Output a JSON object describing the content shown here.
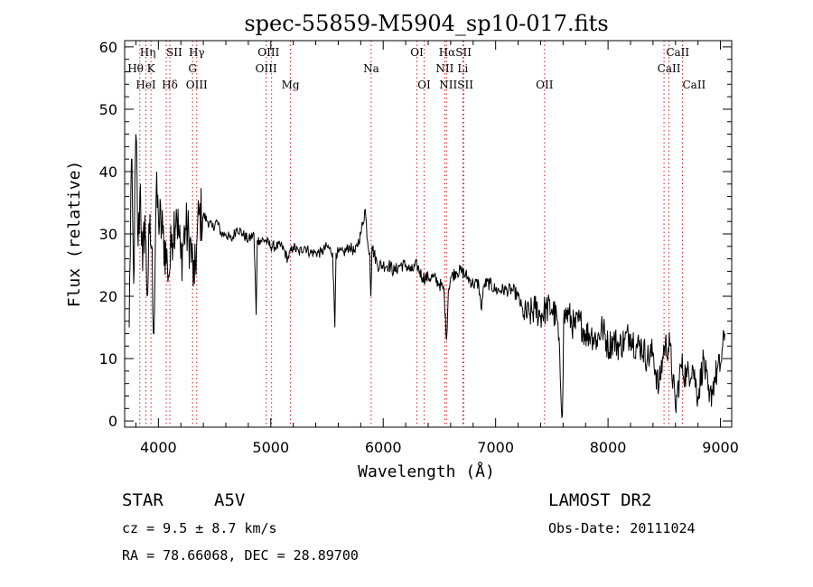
{
  "chart_data": {
    "type": "line",
    "title": "spec-55859-M5904_sp10-017.fits",
    "xlabel": "Wavelength (Å)",
    "ylabel": "Flux (relative)",
    "xlim": [
      3700,
      9100
    ],
    "ylim": [
      -1,
      61
    ],
    "xticks": [
      4000,
      5000,
      6000,
      7000,
      8000,
      9000
    ],
    "yticks": [
      0,
      10,
      20,
      30,
      40,
      50,
      60
    ],
    "grid": false,
    "line_color": "#000000",
    "marker_color": "#cc2222",
    "series": [
      {
        "x": [
          3740,
          3760,
          3780,
          3800,
          3820,
          3840,
          3860,
          3880,
          3900,
          3920,
          3940,
          3960,
          3980,
          4000,
          4040,
          4080,
          4100,
          4120,
          4160,
          4200,
          4240,
          4280,
          4320,
          4340,
          4360,
          4400,
          4440,
          4480,
          4520,
          4560,
          4600,
          4650,
          4700,
          4750,
          4800,
          4850,
          4870,
          4880,
          4900,
          4950,
          5000,
          5050,
          5100,
          5150,
          5200,
          5250,
          5300,
          5350,
          5400,
          5450,
          5500,
          5550,
          5570,
          5580,
          5600,
          5650,
          5700,
          5750,
          5800,
          5840,
          5860,
          5880,
          5890,
          5900,
          5950,
          6000,
          6050,
          6100,
          6150,
          6200,
          6250,
          6300,
          6350,
          6400,
          6450,
          6500,
          6540,
          6563,
          6580,
          6600,
          6650,
          6700,
          6750,
          6800,
          6850,
          6870,
          6900,
          6950,
          7000,
          7050,
          7100,
          7150,
          7200,
          7250,
          7300,
          7350,
          7400,
          7450,
          7500,
          7550,
          7594,
          7605,
          7620,
          7650,
          7700,
          7750,
          7800,
          7850,
          7900,
          7950,
          8000,
          8050,
          8100,
          8150,
          8200,
          8250,
          8300,
          8350,
          8400,
          8450,
          8500,
          8550,
          8600,
          8650,
          8700,
          8750,
          8800,
          8850,
          8900,
          8950,
          9000,
          9040
        ],
        "y": [
          15,
          42,
          22,
          46,
          28,
          38,
          24,
          33,
          20,
          30,
          28,
          14,
          36,
          33,
          30,
          25,
          24,
          30,
          34,
          26,
          31,
          29,
          22,
          28,
          33,
          33,
          32,
          31,
          32,
          30,
          30,
          29,
          31,
          30,
          29,
          30,
          17,
          29,
          29,
          29,
          28,
          28,
          28,
          26,
          28,
          27,
          28,
          27,
          27,
          27,
          28,
          27,
          15,
          27,
          27,
          27,
          28,
          27,
          30,
          34,
          29,
          27,
          20,
          28,
          25,
          25,
          25,
          24,
          25,
          25,
          24,
          25,
          23,
          23,
          23,
          22,
          21,
          13,
          21,
          23,
          24,
          24,
          23,
          22,
          22,
          18,
          22,
          22,
          21,
          21,
          21,
          21,
          20,
          17,
          17,
          18,
          17,
          18,
          18,
          16,
          1,
          16,
          17,
          17,
          15,
          16,
          14,
          14,
          13,
          15,
          12,
          13,
          12,
          13,
          14,
          12,
          12,
          10,
          11,
          5,
          12,
          12,
          2,
          9,
          7,
          9,
          4,
          10,
          3,
          7,
          9,
          14
        ]
      }
    ],
    "lines": [
      {
        "x": 3835,
        "labels": [
          "Hη",
          "Hθ"
        ]
      },
      {
        "x": 3889,
        "labels": [
          "HeI"
        ]
      },
      {
        "x": 3934,
        "labels": [
          "K"
        ]
      },
      {
        "x": 4070,
        "labels": [
          "SII"
        ]
      },
      {
        "x": 4102,
        "labels": [
          "Hδ"
        ]
      },
      {
        "x": 4304,
        "labels": [
          "G"
        ]
      },
      {
        "x": 4341,
        "labels": [
          "Hγ",
          "OIII"
        ]
      },
      {
        "x": 4959,
        "labels": [
          "OIII"
        ]
      },
      {
        "x": 5007,
        "labels": [
          "OIII"
        ]
      },
      {
        "x": 5175,
        "labels": [
          "Mg"
        ]
      },
      {
        "x": 5893,
        "labels": [
          "Na"
        ]
      },
      {
        "x": 6300,
        "labels": [
          "OI"
        ]
      },
      {
        "x": 6364,
        "labels": [
          "OI"
        ]
      },
      {
        "x": 6548,
        "labels": [
          "NII"
        ]
      },
      {
        "x": 6563,
        "labels": [
          "Hα",
          "NII"
        ]
      },
      {
        "x": 6708,
        "labels": [
          "Li"
        ]
      },
      {
        "x": 6717,
        "labels": [
          "SII"
        ]
      },
      {
        "x": 7435,
        "labels": [
          "OII"
        ]
      },
      {
        "x": 8498,
        "labels": [
          "CaII"
        ]
      },
      {
        "x": 8542,
        "labels": [
          "CaII"
        ]
      },
      {
        "x": 8662,
        "labels": [
          "CaII"
        ]
      }
    ],
    "line_labels": [
      {
        "text": "Hη",
        "x": 3835,
        "row": 0,
        "anchor": "start"
      },
      {
        "text": "SII",
        "x": 4070,
        "row": 0,
        "anchor": "start"
      },
      {
        "text": "Hγ",
        "x": 4341,
        "row": 0,
        "anchor": "middle"
      },
      {
        "text": "OIII",
        "x": 4980,
        "row": 0,
        "anchor": "middle"
      },
      {
        "text": "OI",
        "x": 6300,
        "row": 0,
        "anchor": "middle"
      },
      {
        "text": "HαSII",
        "x": 6640,
        "row": 0,
        "anchor": "middle"
      },
      {
        "text": "CaII",
        "x": 8620,
        "row": 0,
        "anchor": "middle"
      },
      {
        "text": "Hθ",
        "x": 3797,
        "row": 1,
        "anchor": "middle"
      },
      {
        "text": "K",
        "x": 3934,
        "row": 1,
        "anchor": "middle"
      },
      {
        "text": "G",
        "x": 4304,
        "row": 1,
        "anchor": "middle"
      },
      {
        "text": "OIII",
        "x": 4959,
        "row": 1,
        "anchor": "middle"
      },
      {
        "text": "Na",
        "x": 5893,
        "row": 1,
        "anchor": "middle"
      },
      {
        "text": "NII",
        "x": 6548,
        "row": 1,
        "anchor": "middle"
      },
      {
        "text": "Li",
        "x": 6708,
        "row": 1,
        "anchor": "middle"
      },
      {
        "text": "CaII",
        "x": 8542,
        "row": 1,
        "anchor": "middle"
      },
      {
        "text": "HeI",
        "x": 3889,
        "row": 2,
        "anchor": "middle"
      },
      {
        "text": "Hδ",
        "x": 4102,
        "row": 2,
        "anchor": "middle"
      },
      {
        "text": "OIII",
        "x": 4341,
        "row": 2,
        "anchor": "middle"
      },
      {
        "text": "Mg",
        "x": 5175,
        "row": 2,
        "anchor": "middle"
      },
      {
        "text": "OI",
        "x": 6364,
        "row": 2,
        "anchor": "middle"
      },
      {
        "text": "NIISII",
        "x": 6650,
        "row": 2,
        "anchor": "middle"
      },
      {
        "text": "OII",
        "x": 7435,
        "row": 2,
        "anchor": "middle"
      },
      {
        "text": "CaII",
        "x": 8662,
        "row": 2,
        "anchor": "start"
      }
    ]
  },
  "info": {
    "object_class": "STAR",
    "subclass": "A5V",
    "survey": "LAMOST DR2",
    "cz": "cz = 9.5 ± 8.7 km/s",
    "obs_date": "Obs-Date: 20111024",
    "coords": "RA =  78.66068, DEC =  28.89700"
  }
}
